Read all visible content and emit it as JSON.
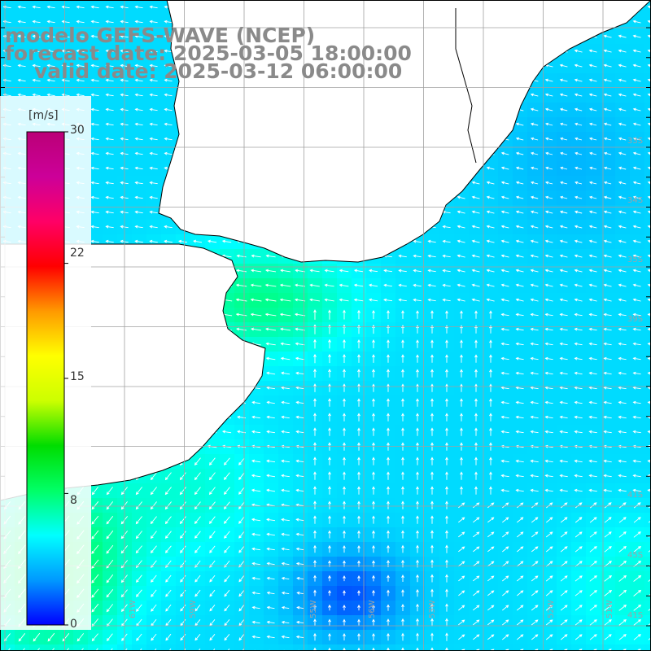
{
  "title": {
    "line1": "modelo GEFS-WAVE (NCEP)",
    "line2": "forecast date: 2025-03-05 18:00:00",
    "line3": "valid date: 2025-03-12 06:00:00"
  },
  "colorbar": {
    "unit": "[m/s]",
    "ticks": [
      "30",
      "22",
      "15",
      "8",
      "0"
    ],
    "tick_values": [
      30,
      22,
      15,
      8,
      0
    ],
    "range": [
      0,
      30
    ],
    "colors": [
      "#0000ff",
      "#0099ff",
      "#00ffff",
      "#00ff66",
      "#00dd00",
      "#ccff00",
      "#ffff00",
      "#ff9900",
      "#ff0000",
      "#ff0066",
      "#cc0099",
      "#bb0077"
    ]
  },
  "map": {
    "lon_range": [
      -60,
      -50
    ],
    "lat_range": [
      -45,
      -25
    ],
    "lat_labels": [
      "33S",
      "34S",
      "35S",
      "39S",
      "41S",
      "45S",
      "41S"
    ],
    "lon_labels": [
      "61W",
      "59W",
      "55W",
      "56W",
      "53W",
      "52W",
      "51W"
    ],
    "grid_color": "#a0a0a0",
    "land_color": "#ffffff",
    "coast_color": "#000000"
  },
  "chart_data": {
    "type": "heatmap",
    "variable": "wind speed with direction vectors",
    "unit": "[m/s]",
    "color_range": [
      0,
      30
    ],
    "regions": [
      {
        "area": "southwest shelf",
        "speed_ms": 9,
        "direction": "toward southwest"
      },
      {
        "area": "La Plata estuary mouth",
        "speed_ms": 7.5,
        "direction": "toward west"
      },
      {
        "area": "northeast offshore",
        "speed_ms": 4.5,
        "direction": "toward west"
      },
      {
        "area": "central offshore",
        "speed_ms": 4,
        "direction": "toward north"
      },
      {
        "area": "south-central low",
        "speed_ms": 1.5,
        "direction": "variable"
      },
      {
        "area": "southeast corner",
        "speed_ms": 6,
        "direction": "toward northeast"
      }
    ]
  }
}
